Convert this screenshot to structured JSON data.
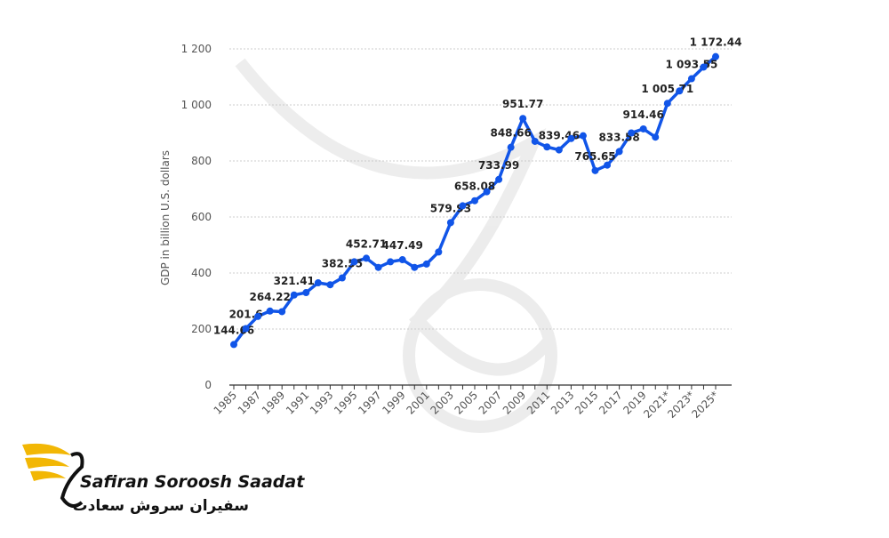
{
  "chart_data": {
    "type": "line",
    "y_label": "GDP in billion U.S. dollars",
    "categories": [
      "1985",
      null,
      "1987",
      null,
      "1989",
      null,
      "1991",
      null,
      "1993",
      null,
      "1995",
      null,
      "1997",
      null,
      "1999",
      null,
      "2001",
      null,
      "2003",
      null,
      "2005",
      null,
      "2007",
      null,
      "2009",
      null,
      "2011",
      null,
      "2013",
      null,
      "2015",
      null,
      "2017",
      null,
      "2019",
      null,
      "2021*",
      null,
      "2023*",
      null,
      "2025*"
    ],
    "series": [
      {
        "name": "GDP",
        "color": "#1155e8",
        "values": [
          144.66,
          201.6,
          245,
          264.22,
          262,
          321.41,
          330,
          365,
          358,
          382.55,
          440,
          452.71,
          420,
          440,
          447.49,
          420,
          432,
          475,
          579.93,
          640,
          658.08,
          690,
          733.99,
          848.66,
          951.77,
          870,
          850,
          839.46,
          880,
          890,
          765.65,
          785,
          833.58,
          900,
          914.46,
          885,
          1005.71,
          1050,
          1093.55,
          1135,
          1172.44
        ],
        "value_labels": [
          "144.66",
          "201.6",
          null,
          "264.22",
          null,
          "321.41",
          null,
          null,
          null,
          "382.55",
          null,
          "452.71",
          null,
          null,
          "447.49",
          null,
          null,
          null,
          "579.93",
          null,
          "658.08",
          null,
          "733.99",
          "848.66",
          "951.77",
          null,
          null,
          "839.46",
          null,
          null,
          "765.65",
          null,
          "833.58",
          null,
          "914.46",
          null,
          "1 005.71",
          null,
          "1 093.55",
          null,
          "1 172.44"
        ]
      }
    ],
    "ylim": [
      0,
      1200
    ],
    "yticks": [
      0,
      200,
      400,
      600,
      800,
      {
        "value": 1000,
        "label": "1 000"
      },
      {
        "value": 1200,
        "label": "1 200"
      }
    ],
    "grid": true
  },
  "logo": {
    "name": "Safiran Soroosh Saadat",
    "name_fa": "سفیران سروش سعادت"
  }
}
